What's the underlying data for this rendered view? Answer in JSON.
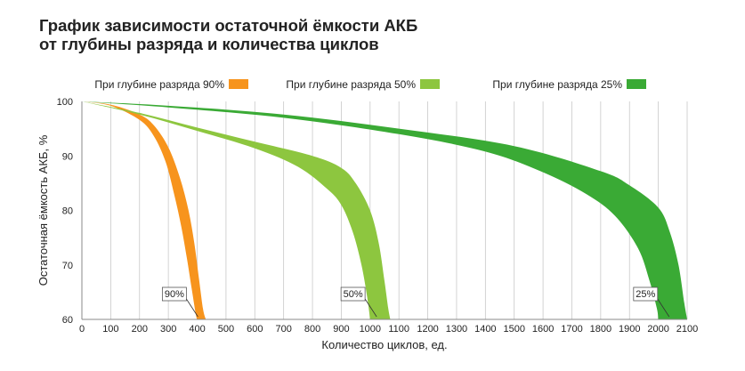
{
  "title_line1": "График зависимости остаточной ёмкости АКБ",
  "title_line2": "от глубины разряда и количества циклов",
  "chart_data": {
    "type": "area",
    "xlabel": "Количество циклов, ед.",
    "ylabel": "Остаточная ёмкость АКБ, %",
    "xlim": [
      0,
      2100
    ],
    "ylim": [
      60,
      100
    ],
    "x_ticks": [
      0,
      100,
      200,
      300,
      400,
      500,
      600,
      700,
      800,
      900,
      1000,
      1100,
      1200,
      1300,
      1400,
      1500,
      1600,
      1700,
      1800,
      1900,
      2000,
      2100
    ],
    "y_ticks": [
      60,
      70,
      80,
      90,
      100
    ],
    "grid": "vertical",
    "legend_position": "top",
    "series": [
      {
        "name": "При глубине разряда 90%",
        "label": "90%",
        "color": "#f7941d",
        "upper": [
          [
            0,
            100
          ],
          [
            100,
            99.4
          ],
          [
            200,
            97.6
          ],
          [
            250,
            95.6
          ],
          [
            300,
            91.6
          ],
          [
            340,
            86
          ],
          [
            370,
            80
          ],
          [
            390,
            74
          ],
          [
            405,
            68
          ],
          [
            420,
            62
          ],
          [
            430,
            60
          ]
        ],
        "lower": [
          [
            0,
            100
          ],
          [
            100,
            99.2
          ],
          [
            200,
            96.6
          ],
          [
            250,
            93.6
          ],
          [
            290,
            89
          ],
          [
            320,
            83
          ],
          [
            345,
            77
          ],
          [
            365,
            71
          ],
          [
            380,
            66
          ],
          [
            395,
            61
          ],
          [
            400,
            60
          ]
        ]
      },
      {
        "name": "При глубине разряда 50%",
        "label": "50%",
        "color": "#8dc63f",
        "upper": [
          [
            0,
            100
          ],
          [
            200,
            97.9
          ],
          [
            400,
            95.2
          ],
          [
            600,
            92.6
          ],
          [
            800,
            90
          ],
          [
            900,
            87.8
          ],
          [
            950,
            85
          ],
          [
            1000,
            80
          ],
          [
            1030,
            74
          ],
          [
            1050,
            67
          ],
          [
            1063,
            62
          ],
          [
            1070,
            60
          ]
        ],
        "lower": [
          [
            0,
            100
          ],
          [
            200,
            97.6
          ],
          [
            400,
            94.6
          ],
          [
            600,
            91.4
          ],
          [
            750,
            88
          ],
          [
            850,
            84
          ],
          [
            900,
            81
          ],
          [
            940,
            76
          ],
          [
            970,
            70
          ],
          [
            990,
            64
          ],
          [
            1000,
            60
          ]
        ]
      },
      {
        "name": "При глубине разряда 25%",
        "label": "25%",
        "color": "#3aaa35",
        "upper": [
          [
            0,
            100
          ],
          [
            300,
            99.2
          ],
          [
            700,
            97.6
          ],
          [
            1100,
            95
          ],
          [
            1500,
            91.8
          ],
          [
            1800,
            87.2
          ],
          [
            1900,
            84.6
          ],
          [
            2000,
            80.5
          ],
          [
            2040,
            76
          ],
          [
            2070,
            70
          ],
          [
            2090,
            63
          ],
          [
            2100,
            60
          ]
        ],
        "lower": [
          [
            0,
            100
          ],
          [
            300,
            98.9
          ],
          [
            700,
            97
          ],
          [
            1100,
            94
          ],
          [
            1400,
            90.8
          ],
          [
            1600,
            87
          ],
          [
            1750,
            83
          ],
          [
            1850,
            79
          ],
          [
            1930,
            73
          ],
          [
            1970,
            67
          ],
          [
            1995,
            62
          ],
          [
            2000,
            60
          ]
        ]
      }
    ]
  }
}
